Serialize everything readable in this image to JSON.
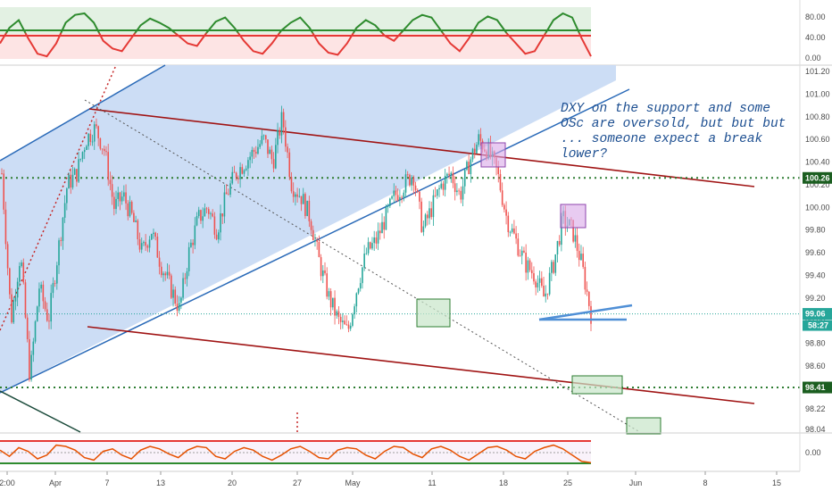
{
  "chart_data": {
    "type": "candlestick",
    "title": "",
    "annotation": "DXY on the support and some OSc are oversold, but but but ... someone expect a break lower?",
    "x_ticks": [
      "2:00",
      "Apr",
      "7",
      "13",
      "20",
      "27",
      "May",
      "11",
      "18",
      "25",
      "Jun",
      "8",
      "15"
    ],
    "y_ticks": [
      "101.20",
      "101.00",
      "100.80",
      "100.60",
      "100.40",
      "100.20",
      "100.00",
      "99.80",
      "99.60",
      "99.40",
      "99.20",
      "99.00",
      "98.80",
      "98.60",
      "98.40",
      "98.22",
      "98.04"
    ],
    "ylim": [
      98.0,
      101.26
    ],
    "price_labels": {
      "resistance": "100.26",
      "last_price": "99.06",
      "countdown": "58:27",
      "support": "98.41"
    },
    "horizontal_levels": {
      "resistance": 100.26,
      "support": 98.41
    },
    "price_path": [
      [
        "Mar 26",
        100.3
      ],
      [
        "Mar 27",
        99.0
      ],
      [
        "Mar 28",
        99.6
      ],
      [
        "Mar 30",
        98.5
      ],
      [
        "Mar 31",
        99.3
      ],
      [
        "Apr 1",
        99.0
      ],
      [
        "Apr 2",
        99.6
      ],
      [
        "Apr 3",
        100.2
      ],
      [
        "Apr 4",
        100.3
      ],
      [
        "Apr 5",
        100.6
      ],
      [
        "Apr 6",
        100.7
      ],
      [
        "Apr 7",
        100.5
      ],
      [
        "Apr 8",
        100.0
      ],
      [
        "Apr 9",
        100.1
      ],
      [
        "Apr 10",
        99.9
      ],
      [
        "Apr 11",
        99.6
      ],
      [
        "Apr 12",
        99.8
      ],
      [
        "Apr 13",
        99.5
      ],
      [
        "Apr 14",
        99.3
      ],
      [
        "Apr 15",
        99.1
      ],
      [
        "Apr 16",
        99.6
      ],
      [
        "Apr 17",
        99.9
      ],
      [
        "Apr 18",
        100.0
      ],
      [
        "Apr 19",
        99.8
      ],
      [
        "Apr 20",
        100.1
      ],
      [
        "Apr 21",
        100.3
      ],
      [
        "Apr 22",
        100.4
      ],
      [
        "Apr 23",
        100.5
      ],
      [
        "Apr 24",
        100.6
      ],
      [
        "Apr 25",
        100.4
      ],
      [
        "Apr 26",
        100.8
      ],
      [
        "Apr 27",
        100.2
      ],
      [
        "Apr 28",
        100.1
      ],
      [
        "Apr 29",
        99.9
      ],
      [
        "Apr 30",
        99.5
      ],
      [
        "May 1",
        99.2
      ],
      [
        "May 2",
        99.0
      ],
      [
        "May 3",
        98.9
      ],
      [
        "May 4",
        99.3
      ],
      [
        "May 5",
        99.6
      ],
      [
        "May 6",
        99.7
      ],
      [
        "May 7",
        99.9
      ],
      [
        "May 8",
        100.1
      ],
      [
        "May 9",
        100.2
      ],
      [
        "May 10",
        100.3
      ],
      [
        "May 11",
        99.8
      ],
      [
        "May 12",
        100.0
      ],
      [
        "May 13",
        100.2
      ],
      [
        "May 14",
        100.3
      ],
      [
        "May 15",
        100.1
      ],
      [
        "May 16",
        100.4
      ],
      [
        "May 17",
        100.6
      ],
      [
        "May 18",
        100.5
      ],
      [
        "May 19",
        100.3
      ],
      [
        "May 20",
        99.9
      ],
      [
        "May 21",
        99.7
      ],
      [
        "May 22",
        99.5
      ],
      [
        "May 23",
        99.4
      ],
      [
        "May 24",
        99.2
      ],
      [
        "May 25",
        99.5
      ],
      [
        "May 26",
        99.9
      ],
      [
        "May 27",
        99.8
      ],
      [
        "May 28",
        99.5
      ],
      [
        "May 29",
        99.06
      ]
    ],
    "top_oscillator": {
      "yticks": [
        "80.00",
        "40.00",
        "0.00"
      ],
      "ylim": [
        0,
        100
      ],
      "overbought": 50,
      "oversold": 40,
      "values": [
        30,
        60,
        75,
        40,
        10,
        5,
        30,
        70,
        85,
        88,
        70,
        35,
        20,
        15,
        40,
        65,
        78,
        70,
        60,
        45,
        30,
        25,
        50,
        72,
        80,
        60,
        35,
        15,
        10,
        30,
        55,
        70,
        80,
        60,
        30,
        12,
        8,
        30,
        60,
        75,
        65,
        45,
        35,
        55,
        75,
        85,
        80,
        55,
        30,
        15,
        40,
        70,
        82,
        75,
        50,
        30,
        10,
        15,
        45,
        75,
        88,
        80,
        40,
        5
      ]
    },
    "bottom_oscillator": {
      "yticks": [
        "0.00"
      ],
      "values": [
        0.2,
        -0.3,
        0.4,
        0.1,
        -0.5,
        -0.2,
        0.6,
        0.5,
        0.2,
        -0.4,
        -0.6,
        0.1,
        0.3,
        -0.2,
        -0.5,
        0.2,
        0.5,
        0.3,
        -0.1,
        -0.4,
        0.2,
        0.5,
        0.4,
        -0.3,
        -0.5,
        0.1,
        0.4,
        0.2,
        -0.3,
        -0.6,
        -0.2,
        0.3,
        0.5,
        0.1,
        -0.4,
        -0.5,
        0.2,
        0.4,
        0.3,
        -0.2,
        -0.5,
        0.1,
        0.5,
        0.4,
        -0.1,
        -0.4,
        0.3,
        0.5,
        0.2,
        -0.3,
        -0.6,
        -0.1,
        0.4,
        0.5,
        0.2,
        -0.3,
        -0.5,
        0.1,
        0.4,
        0.6,
        0.3,
        -0.2,
        -0.7,
        -0.8
      ]
    },
    "colors": {
      "up": "#26a69a",
      "down": "#ef5350",
      "channel_fill": "#c7d9f4",
      "channel_line": "#2a6ab8",
      "trendline": "#a01414",
      "support_dotted": "#2e7d32",
      "osc_high": "#2e8b2e",
      "osc_low": "#e53935",
      "last_price_badge": "#26a69a",
      "level_badge": "#1b5e20"
    }
  }
}
